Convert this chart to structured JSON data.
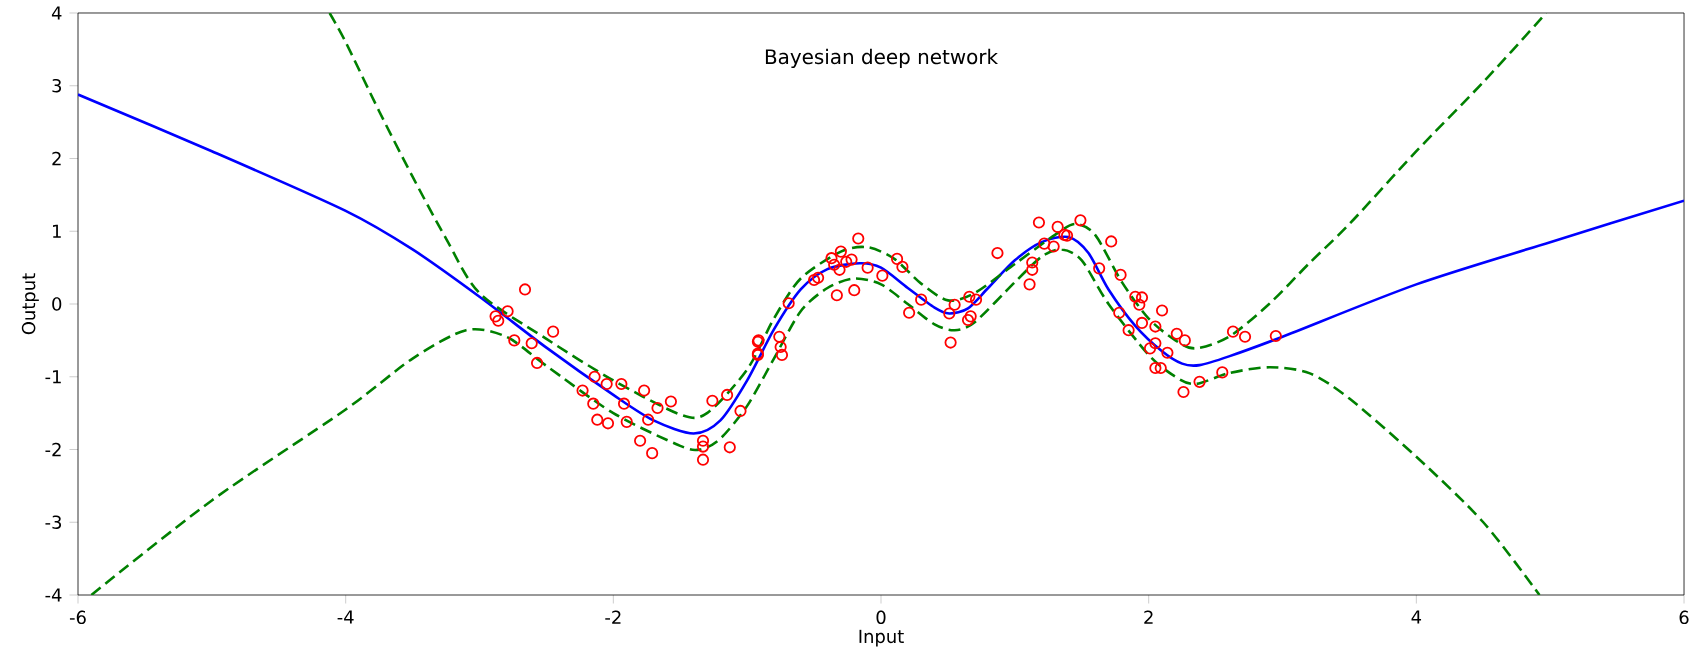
{
  "chart_data": {
    "type": "line",
    "title": "Bayesian deep network",
    "xlabel": "Input",
    "ylabel": "Output",
    "xlim": [
      -6,
      6
    ],
    "ylim": [
      -4,
      4
    ],
    "xticks": [
      -6,
      -4,
      -2,
      0,
      2,
      4,
      6
    ],
    "yticks": [
      -4,
      -3,
      -2,
      -1,
      0,
      1,
      2,
      3,
      4
    ],
    "grid": false,
    "series": [
      {
        "type": "scatter",
        "color": "#ff0000",
        "marker": "circle",
        "x": [
          -0.915,
          -0.92,
          -0.76,
          -0.75,
          -0.74,
          -0.69,
          -0.5,
          -0.47,
          -0.37,
          -0.3,
          -0.35,
          -0.31,
          -0.26,
          -0.22,
          -0.33,
          -0.2,
          -0.17,
          -0.1,
          0.01,
          0.12,
          0.16,
          0.21,
          0.3,
          0.51,
          0.55,
          0.52,
          0.66,
          0.71,
          0.65,
          0.67,
          0.87,
          1.11,
          1.13,
          1.13,
          1.18,
          1.22,
          1.32,
          1.29,
          1.37,
          1.39,
          1.49,
          1.72,
          1.63,
          1.79,
          1.78,
          1.85,
          1.9,
          1.95,
          1.93,
          1.95,
          2.05,
          2.1,
          2.01,
          2.05,
          2.14,
          2.05,
          2.09,
          2.21,
          2.27,
          2.26,
          2.38,
          2.55,
          2.63,
          2.72,
          2.95,
          -2.66,
          -2.88,
          -2.86,
          -2.79,
          -2.74,
          -2.61,
          -2.45,
          -2.57,
          -2.23,
          -2.14,
          -2.05,
          -2.15,
          -2.12,
          -2.04,
          -1.94,
          -1.92,
          -1.9,
          -1.77,
          -1.74,
          -1.67,
          -1.57,
          -1.8,
          -1.71,
          -1.33,
          -1.33,
          -1.33,
          -1.26,
          -1.15,
          -1.13,
          -1.05,
          -0.92,
          -0.92
        ],
        "values": [
          -0.5,
          -0.68,
          -0.45,
          -0.59,
          -0.7,
          0.01,
          0.33,
          0.36,
          0.63,
          0.72,
          0.54,
          0.47,
          0.58,
          0.61,
          0.12,
          0.19,
          0.9,
          0.5,
          0.39,
          0.62,
          0.51,
          -0.12,
          0.06,
          -0.13,
          -0.01,
          -0.53,
          0.1,
          0.06,
          -0.22,
          -0.17,
          0.7,
          0.27,
          0.47,
          0.57,
          1.12,
          0.83,
          1.06,
          0.79,
          0.95,
          0.94,
          1.15,
          0.86,
          0.49,
          0.4,
          -0.12,
          -0.36,
          0.1,
          0.09,
          -0.01,
          -0.26,
          -0.31,
          -0.09,
          -0.61,
          -0.54,
          -0.67,
          -0.88,
          -0.88,
          -0.41,
          -0.5,
          -1.21,
          -1.07,
          -0.94,
          -0.38,
          -0.45,
          -0.44,
          0.2,
          -0.17,
          -0.23,
          -0.1,
          -0.5,
          -0.54,
          -0.38,
          -0.81,
          -1.19,
          -1.0,
          -1.1,
          -1.37,
          -1.59,
          -1.64,
          -1.1,
          -1.37,
          -1.62,
          -1.19,
          -1.59,
          -1.43,
          -1.34,
          -1.88,
          -2.05,
          -1.88,
          -1.96,
          -2.14,
          -1.33,
          -1.25,
          -1.97,
          -1.47,
          -0.52,
          -0.7
        ]
      },
      {
        "color": "#0000ff",
        "line_style": "solid",
        "x": [
          -6,
          -5,
          -4,
          -3.5,
          -3,
          -2.5,
          -2,
          -1.7,
          -1.4,
          -1.2,
          -1,
          -0.8,
          -0.6,
          -0.4,
          -0.16,
          0,
          0.2,
          0.4,
          0.51,
          0.65,
          0.8,
          1,
          1.2,
          1.4,
          1.55,
          1.7,
          1.9,
          2.1,
          2.25,
          2.38,
          2.6,
          3,
          4,
          5,
          6
        ],
        "values": [
          2.88,
          2.1,
          1.28,
          0.75,
          0.1,
          -0.6,
          -1.25,
          -1.6,
          -1.78,
          -1.6,
          -1.05,
          -0.35,
          0.2,
          0.48,
          0.56,
          0.5,
          0.22,
          -0.05,
          -0.13,
          -0.06,
          0.22,
          0.6,
          0.85,
          0.92,
          0.7,
          0.2,
          -0.3,
          -0.65,
          -0.82,
          -0.84,
          -0.72,
          -0.45,
          0.27,
          0.85,
          1.42
        ]
      },
      {
        "color": "#008000",
        "line_style": "dashed",
        "x": [
          -4.12,
          -4,
          -3.75,
          -3.5,
          -3.25,
          -3,
          -2.5,
          -2,
          -1.5,
          -1.3,
          -1,
          -0.8,
          -0.6,
          -0.3,
          -0.1,
          0.1,
          0.3,
          0.5,
          0.7,
          1,
          1.3,
          1.45,
          1.6,
          1.8,
          2,
          2.2,
          2.35,
          2.6,
          2.9,
          3.2,
          3.5,
          4,
          4.5,
          4.97
        ],
        "values": [
          4,
          3.6,
          2.65,
          1.75,
          0.9,
          0.15,
          -0.48,
          -1.05,
          -1.52,
          -1.5,
          -0.9,
          -0.2,
          0.35,
          0.72,
          0.78,
          0.62,
          0.28,
          0.05,
          0.15,
          0.55,
          0.95,
          1.1,
          0.95,
          0.3,
          -0.2,
          -0.5,
          -0.61,
          -0.45,
          0,
          0.56,
          1.1,
          2.1,
          3.05,
          4
        ]
      },
      {
        "color": "#008000",
        "line_style": "dashed",
        "x": [
          -5.9,
          -5,
          -4,
          -3.5,
          -3.1,
          -2.8,
          -2.5,
          -2,
          -1.5,
          -1.35,
          -1.2,
          -1,
          -0.8,
          -0.6,
          -0.4,
          -0.2,
          0,
          0.2,
          0.4,
          0.55,
          0.7,
          1,
          1.2,
          1.35,
          1.5,
          1.7,
          2,
          2.2,
          2.35,
          2.6,
          2.9,
          3.2,
          3.5,
          4,
          4.5,
          4.92
        ],
        "values": [
          -4,
          -2.7,
          -1.45,
          -0.75,
          -0.36,
          -0.45,
          -0.85,
          -1.5,
          -1.95,
          -2,
          -1.85,
          -1.4,
          -0.75,
          -0.1,
          0.22,
          0.35,
          0.27,
          0,
          -0.28,
          -0.36,
          -0.25,
          0.3,
          0.65,
          0.75,
          0.6,
          0,
          -0.7,
          -1,
          -1.1,
          -0.95,
          -0.87,
          -0.95,
          -1.3,
          -2.1,
          -3,
          -4
        ]
      }
    ]
  }
}
